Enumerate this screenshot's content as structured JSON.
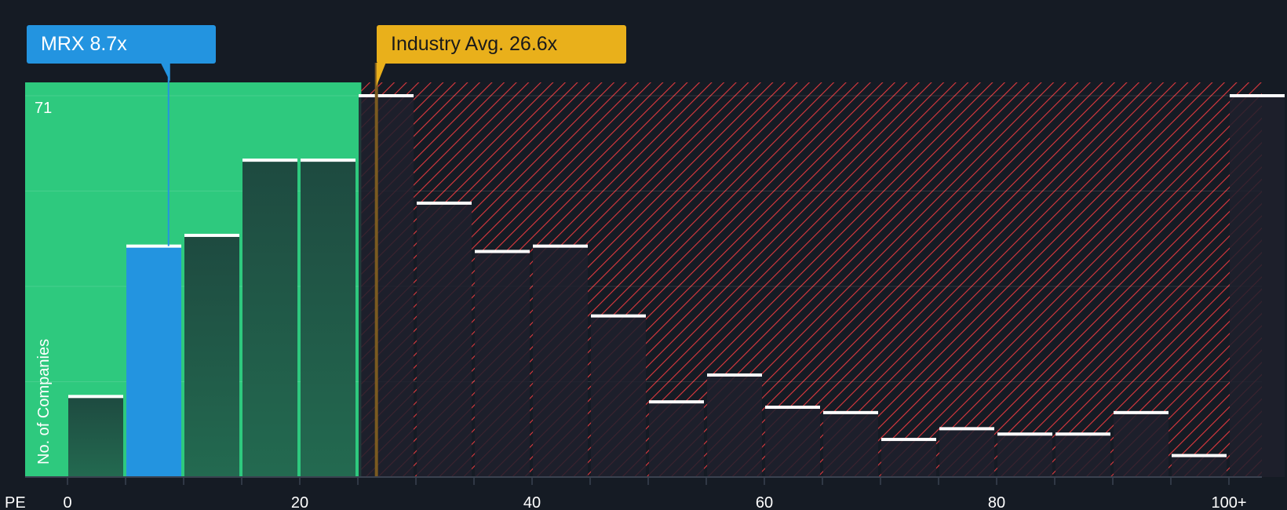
{
  "chart_data": {
    "type": "bar",
    "xlabel": "PE",
    "ylabel": "No. of Companies",
    "x_tick_labels": [
      "0",
      "20",
      "40",
      "60",
      "80",
      "100+"
    ],
    "y_max_label": "71",
    "bin_width": 5,
    "bins": [
      "0-5",
      "5-10",
      "10-15",
      "15-20",
      "20-25",
      "25-30",
      "30-35",
      "35-40",
      "40-45",
      "45-50",
      "50-55",
      "55-60",
      "60-65",
      "65-70",
      "70-75",
      "75-80",
      "80-85",
      "85-90",
      "90-95",
      "95-100",
      "100+"
    ],
    "values": [
      15,
      43,
      45,
      59,
      59,
      71,
      51,
      42,
      43,
      30,
      14,
      19,
      13,
      12,
      7,
      9,
      8,
      8,
      12,
      4,
      71
    ],
    "ylim": [
      0,
      71
    ],
    "highlight": {
      "label": "MRX 8.7x",
      "value": 8.7,
      "bin_index": 1,
      "color": "#2394e0"
    },
    "industry_avg": {
      "label": "Industry Avg. 26.6x",
      "value": 26.6,
      "color": "#e9b01b"
    },
    "colors": {
      "background": "#151b24",
      "fair_zone": "#2ec97e",
      "overvalued_hatch": "#e0393e",
      "bar": "#1f4e42"
    }
  }
}
